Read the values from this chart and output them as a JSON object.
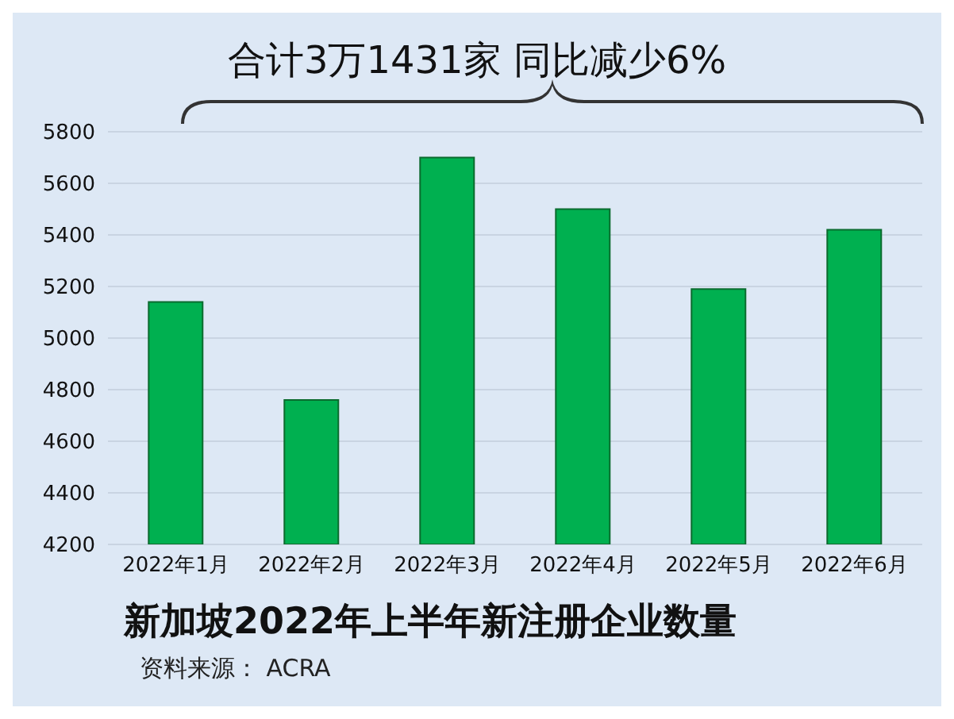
{
  "chart_data": {
    "type": "bar",
    "title": "合计3万1431家  同比减少6%",
    "subtitle": "新加坡2022年上半年新注册企业数量",
    "categories": [
      "2022年1月",
      "2022年2月",
      "2022年3月",
      "2022年4月",
      "2022年5月",
      "2022年6月"
    ],
    "values": [
      5140,
      4760,
      5700,
      5500,
      5190,
      5420
    ],
    "color": "#00b050",
    "ylim": [
      4200,
      5800
    ],
    "yticks": [
      4200,
      4400,
      4600,
      4800,
      5000,
      5200,
      5400,
      5600,
      5800
    ],
    "grid": "y",
    "annotations": [
      "资料来源：  ACRA"
    ]
  }
}
